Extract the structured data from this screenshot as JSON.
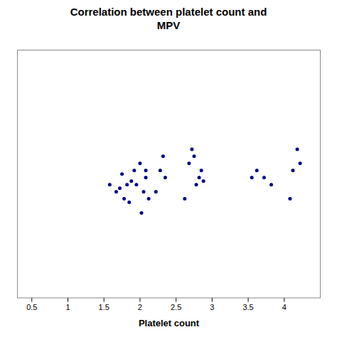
{
  "chart_data": {
    "type": "scatter",
    "title": "Correlation between platelet count and\nMPV",
    "xlabel": "Platelet count",
    "color": "#00008B",
    "x": [
      1.58,
      1.67,
      1.72,
      1.75,
      1.78,
      1.82,
      1.85,
      1.88,
      1.92,
      1.95,
      2.0,
      2.02,
      2.05,
      2.08,
      2.08,
      2.12,
      2.22,
      2.28,
      2.32,
      2.35,
      2.62,
      2.68,
      2.72,
      2.75,
      2.78,
      2.82,
      2.85,
      2.88,
      3.55,
      3.62,
      3.72,
      3.82,
      4.08,
      4.12,
      4.18,
      4.22
    ],
    "values": [
      9.2,
      9.0,
      9.1,
      9.5,
      8.8,
      9.2,
      8.7,
      9.3,
      9.6,
      9.2,
      9.8,
      8.4,
      9.0,
      9.4,
      9.6,
      8.8,
      9.0,
      9.6,
      10.0,
      9.4,
      8.8,
      9.8,
      10.2,
      10.0,
      9.2,
      9.4,
      9.6,
      9.3,
      9.4,
      9.6,
      9.4,
      9.2,
      8.8,
      9.6,
      10.2,
      9.8
    ],
    "xlim": [
      0.3,
      4.5
    ],
    "ylim": [
      6.0,
      13.0
    ],
    "xticks": [
      0.5,
      1,
      1.5,
      2,
      2.5,
      3,
      3.5,
      4
    ],
    "tick_labels": "x",
    "grid": false
  }
}
